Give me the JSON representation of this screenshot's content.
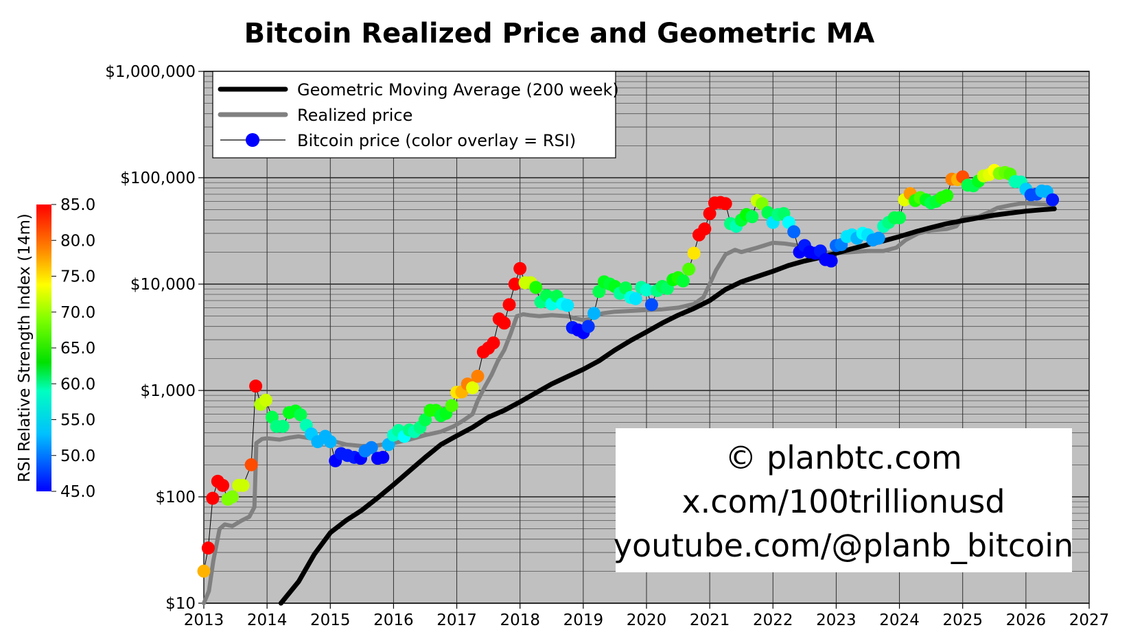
{
  "chart_data": {
    "type": "line",
    "title": "Bitcoin Realized Price and Geometric MA",
    "xlabel": "",
    "ylabel": "",
    "yscale": "log",
    "xlim": [
      2013,
      2027
    ],
    "ylim": [
      10,
      1000000
    ],
    "x_ticks": [
      "2013",
      "2014",
      "2015",
      "2016",
      "2017",
      "2018",
      "2019",
      "2020",
      "2021",
      "2022",
      "2023",
      "2024",
      "2025",
      "2026",
      "2027"
    ],
    "y_ticks": [
      {
        "value": 10,
        "label": "$10"
      },
      {
        "value": 100,
        "label": "$100"
      },
      {
        "value": 1000,
        "label": "$1,000"
      },
      {
        "value": 10000,
        "label": "$10,000"
      },
      {
        "value": 100000,
        "label": "$100,000"
      },
      {
        "value": 1000000,
        "label": "$1,000,000"
      }
    ],
    "grid": true,
    "background_color": "#c0c0c0",
    "legend_position": "top-left",
    "series": [
      {
        "name": "Geometric Moving Average (200 week)",
        "color": "#000000",
        "x": [
          2014.22,
          2014.5,
          2014.75,
          2015.0,
          2015.25,
          2015.5,
          2015.75,
          2016.0,
          2016.25,
          2016.5,
          2016.75,
          2017.0,
          2017.25,
          2017.5,
          2017.75,
          2018.0,
          2018.25,
          2018.5,
          2018.75,
          2019.0,
          2019.25,
          2019.5,
          2019.75,
          2020.0,
          2020.25,
          2020.5,
          2020.75,
          2021.0,
          2021.25,
          2021.5,
          2021.75,
          2022.0,
          2022.25,
          2022.5,
          2022.75,
          2023.0,
          2023.25,
          2023.5,
          2023.75,
          2024.0,
          2024.25,
          2024.5,
          2024.75,
          2025.0,
          2025.25,
          2025.5,
          2025.75,
          2026.0,
          2026.25,
          2026.45
        ],
        "y": [
          10,
          16,
          29,
          46,
          60,
          75,
          98,
          130,
          175,
          235,
          310,
          375,
          450,
          560,
          650,
          780,
          950,
          1150,
          1350,
          1580,
          1900,
          2400,
          2950,
          3550,
          4300,
          5100,
          5900,
          7000,
          8900,
          10500,
          11800,
          13200,
          15000,
          16500,
          17800,
          19500,
          21500,
          23500,
          25500,
          28000,
          31000,
          34000,
          37000,
          39500,
          42000,
          44500,
          46500,
          48500,
          50000,
          51000
        ]
      },
      {
        "name": "Realized price",
        "color": "#808080",
        "x": [
          2013.0,
          2013.08,
          2013.15,
          2013.25,
          2013.33,
          2013.45,
          2013.6,
          2013.72,
          2013.8,
          2013.83,
          2013.92,
          2014.0,
          2014.2,
          2014.35,
          2014.5,
          2014.75,
          2015.0,
          2015.25,
          2015.5,
          2015.75,
          2016.0,
          2016.25,
          2016.5,
          2016.75,
          2016.95,
          2017.1,
          2017.25,
          2017.33,
          2017.45,
          2017.55,
          2017.65,
          2017.75,
          2017.85,
          2017.95,
          2018.05,
          2018.15,
          2018.3,
          2018.5,
          2018.75,
          2018.85,
          2019.0,
          2019.1,
          2019.3,
          2019.5,
          2019.75,
          2020.0,
          2020.25,
          2020.5,
          2020.75,
          2020.9,
          2021.0,
          2021.1,
          2021.25,
          2021.4,
          2021.5,
          2021.75,
          2022.0,
          2022.2,
          2022.4,
          2022.5,
          2022.75,
          2023.0,
          2023.25,
          2023.5,
          2023.75,
          2023.95,
          2024.1,
          2024.3,
          2024.5,
          2024.75,
          2024.9,
          2025.0,
          2025.25,
          2025.4,
          2025.55,
          2025.75,
          2025.9,
          2026.0,
          2026.2,
          2026.45
        ],
        "y": [
          10,
          13,
          25,
          50,
          55,
          53,
          60,
          65,
          80,
          320,
          350,
          355,
          345,
          360,
          370,
          350,
          340,
          310,
          300,
          305,
          320,
          345,
          380,
          410,
          460,
          520,
          600,
          800,
          1100,
          1400,
          1900,
          2400,
          3400,
          5000,
          5200,
          5100,
          5000,
          5100,
          5000,
          4800,
          4600,
          4700,
          5300,
          5500,
          5600,
          5700,
          5800,
          6000,
          6500,
          7500,
          10000,
          13500,
          19000,
          21000,
          20000,
          22000,
          24500,
          24000,
          23000,
          21000,
          20000,
          19500,
          20000,
          20500,
          20500,
          22000,
          26000,
          30000,
          32000,
          33000,
          35000,
          42000,
          43000,
          47000,
          52000,
          55000,
          57000,
          57500,
          56500,
          55500
        ]
      },
      {
        "name": "Bitcoin price (color overlay = RSI)",
        "color": "#0000ff",
        "x": [
          2013.0,
          2013.07,
          2013.14,
          2013.22,
          2013.3,
          2013.38,
          2013.45,
          2013.55,
          2013.62,
          2013.75,
          2013.82,
          2013.9,
          2013.98,
          2014.08,
          2014.15,
          2014.25,
          2014.35,
          2014.45,
          2014.53,
          2014.62,
          2014.7,
          2014.8,
          2014.92,
          2015.0,
          2015.08,
          2015.17,
          2015.27,
          2015.38,
          2015.48,
          2015.55,
          2015.65,
          2015.75,
          2015.83,
          2015.92,
          2016.0,
          2016.08,
          2016.17,
          2016.25,
          2016.33,
          2016.42,
          2016.5,
          2016.58,
          2016.67,
          2016.75,
          2016.83,
          2016.92,
          2017.0,
          2017.08,
          2017.17,
          2017.25,
          2017.33,
          2017.42,
          2017.5,
          2017.58,
          2017.67,
          2017.75,
          2017.83,
          2017.92,
          2018.0,
          2018.08,
          2018.17,
          2018.25,
          2018.33,
          2018.42,
          2018.5,
          2018.58,
          2018.67,
          2018.75,
          2018.83,
          2018.92,
          2019.0,
          2019.08,
          2019.17,
          2019.25,
          2019.33,
          2019.42,
          2019.5,
          2019.58,
          2019.67,
          2019.75,
          2019.83,
          2019.92,
          2020.0,
          2020.08,
          2020.17,
          2020.25,
          2020.33,
          2020.42,
          2020.5,
          2020.58,
          2020.67,
          2020.75,
          2020.83,
          2020.92,
          2021.0,
          2021.08,
          2021.17,
          2021.25,
          2021.33,
          2021.42,
          2021.5,
          2021.58,
          2021.67,
          2021.75,
          2021.83,
          2021.92,
          2022.0,
          2022.08,
          2022.17,
          2022.25,
          2022.33,
          2022.42,
          2022.5,
          2022.58,
          2022.67,
          2022.75,
          2022.83,
          2022.92,
          2023.0,
          2023.08,
          2023.17,
          2023.25,
          2023.33,
          2023.42,
          2023.5,
          2023.58,
          2023.67,
          2023.75,
          2023.83,
          2023.92,
          2024.0,
          2024.08,
          2024.17,
          2024.25,
          2024.33,
          2024.42,
          2024.5,
          2024.58,
          2024.67,
          2024.75,
          2024.83,
          2024.92,
          2025.0,
          2025.08,
          2025.17,
          2025.25,
          2025.33,
          2025.42,
          2025.5,
          2025.58,
          2025.67,
          2025.75,
          2025.83,
          2025.92,
          2026.0,
          2026.08,
          2026.17,
          2026.25,
          2026.33,
          2026.42
        ],
        "y": [
          20,
          33,
          97,
          140,
          128,
          95,
          100,
          128,
          128,
          200,
          1100,
          740,
          810,
          560,
          460,
          460,
          620,
          640,
          590,
          470,
          390,
          330,
          370,
          330,
          218,
          255,
          245,
          235,
          230,
          270,
          290,
          230,
          235,
          310,
          380,
          420,
          370,
          425,
          410,
          450,
          530,
          650,
          650,
          580,
          610,
          720,
          960,
          970,
          1150,
          1060,
          1360,
          2300,
          2500,
          2800,
          4700,
          4300,
          6400,
          10000,
          14000,
          10300,
          10300,
          9300,
          6800,
          7800,
          6500,
          7700,
          6500,
          6300,
          3900,
          3700,
          3500,
          4000,
          5300,
          8500,
          10500,
          10000,
          9500,
          8200,
          9200,
          7500,
          7300,
          9300,
          8800,
          6400,
          8700,
          9500,
          9100,
          11000,
          11500,
          10700,
          13800,
          19500,
          29000,
          33000,
          46000,
          58000,
          58500,
          57000,
          37000,
          35000,
          40000,
          45000,
          43000,
          61000,
          57000,
          47000,
          38000,
          45000,
          46000,
          38000,
          31000,
          20000,
          23000,
          20000,
          19500,
          20500,
          17000,
          16500,
          23000,
          23500,
          28000,
          29000,
          27000,
          30000,
          29000,
          26000,
          27000,
          35000,
          38000,
          42000,
          42000,
          62000,
          71000,
          61000,
          65000,
          62000,
          58000,
          60000,
          65000,
          68000,
          97000,
          96000,
          102000,
          85000,
          84000,
          93000,
          104000,
          107000,
          117000,
          110000,
          112000,
          108000,
          92000,
          91000,
          78000,
          69000,
          70000,
          75000,
          74000,
          62000
        ],
        "rsi": [
          78,
          85,
          85,
          85,
          85,
          70,
          70,
          73,
          73,
          82,
          85,
          72,
          73,
          62,
          60,
          60,
          64,
          64,
          62,
          58,
          53,
          52,
          52,
          52,
          45,
          46,
          46,
          46,
          45,
          50,
          50,
          45,
          45,
          52,
          57,
          59,
          55,
          60,
          58,
          60,
          62,
          66,
          66,
          63,
          64,
          68,
          76,
          78,
          80,
          74,
          80,
          85,
          85,
          85,
          85,
          85,
          85,
          85,
          85,
          73,
          73,
          66,
          60,
          62,
          56,
          62,
          55,
          54,
          46,
          45,
          45,
          47,
          52,
          62,
          64,
          63,
          64,
          59,
          62,
          56,
          54,
          59,
          57,
          48,
          60,
          62,
          61,
          65,
          66,
          63,
          68,
          76,
          85,
          85,
          85,
          85,
          85,
          85,
          60,
          58,
          63,
          65,
          62,
          73,
          70,
          62,
          54,
          60,
          61,
          55,
          49,
          45,
          46,
          45,
          45,
          46,
          45,
          45,
          49,
          50,
          54,
          54,
          52,
          55,
          54,
          51,
          51,
          58,
          60,
          62,
          62,
          74,
          79,
          66,
          68,
          64,
          62,
          63,
          66,
          66,
          80,
          78,
          82,
          62,
          62,
          64,
          73,
          74,
          75,
          70,
          69,
          68,
          58,
          58,
          53,
          48,
          48,
          52,
          52,
          46
        ]
      }
    ],
    "colorbar": {
      "label": "RSI Relative Strength Index (14m)",
      "min": 45.0,
      "max": 85.0,
      "ticks": [
        "85.0",
        "80.0",
        "75.0",
        "70.0",
        "65.0",
        "60.0",
        "55.0",
        "50.0",
        "45.0"
      ]
    },
    "watermark": [
      "© planbtc.com",
      "x.com/100trillionusd",
      "youtube.com/@planb_bitcoin"
    ]
  }
}
